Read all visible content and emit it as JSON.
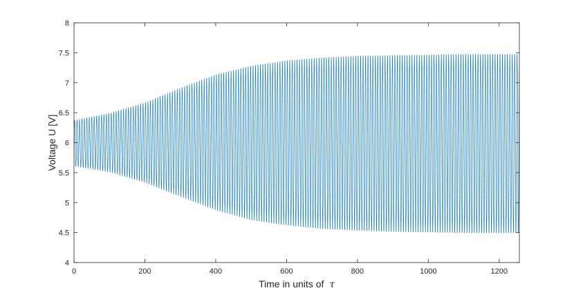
{
  "chart_data": {
    "type": "line",
    "title": "",
    "xlabel": "Time in units of",
    "xlabel_symbol": "τ",
    "ylabel": "Voltage U [V]",
    "xlim": [
      0,
      1257
    ],
    "ylim": [
      4,
      8
    ],
    "x_ticks": [
      0,
      200,
      400,
      600,
      800,
      1000,
      1200
    ],
    "y_ticks": [
      4,
      4.5,
      5,
      5.5,
      6,
      6.5,
      7,
      7.5,
      8
    ],
    "x_tick_labels": [
      "0",
      "200",
      "400",
      "600",
      "800",
      "1000",
      "1200"
    ],
    "y_tick_labels": [
      "4",
      "4.5",
      "5",
      "5.5",
      "6",
      "6.5",
      "7",
      "7.5",
      "8"
    ],
    "grid": false,
    "box": true,
    "series": [
      {
        "color": "#0072bd",
        "oscillation_period": 6.9,
        "center": 6.0,
        "envelope_upper": {
          "x": [
            0,
            100,
            200,
            300,
            400,
            500,
            600,
            700,
            800,
            900,
            1000,
            1100,
            1200,
            1257
          ],
          "y": [
            6.38,
            6.5,
            6.68,
            6.93,
            7.16,
            7.31,
            7.4,
            7.45,
            7.48,
            7.49,
            7.5,
            7.51,
            7.51,
            7.51
          ]
        },
        "envelope_lower": {
          "x": [
            0,
            100,
            200,
            300,
            400,
            500,
            600,
            700,
            800,
            900,
            1000,
            1100,
            1200,
            1257
          ],
          "y": [
            5.6,
            5.5,
            5.32,
            5.08,
            4.85,
            4.68,
            4.59,
            4.53,
            4.5,
            4.48,
            4.47,
            4.46,
            4.46,
            4.46
          ]
        }
      }
    ]
  }
}
